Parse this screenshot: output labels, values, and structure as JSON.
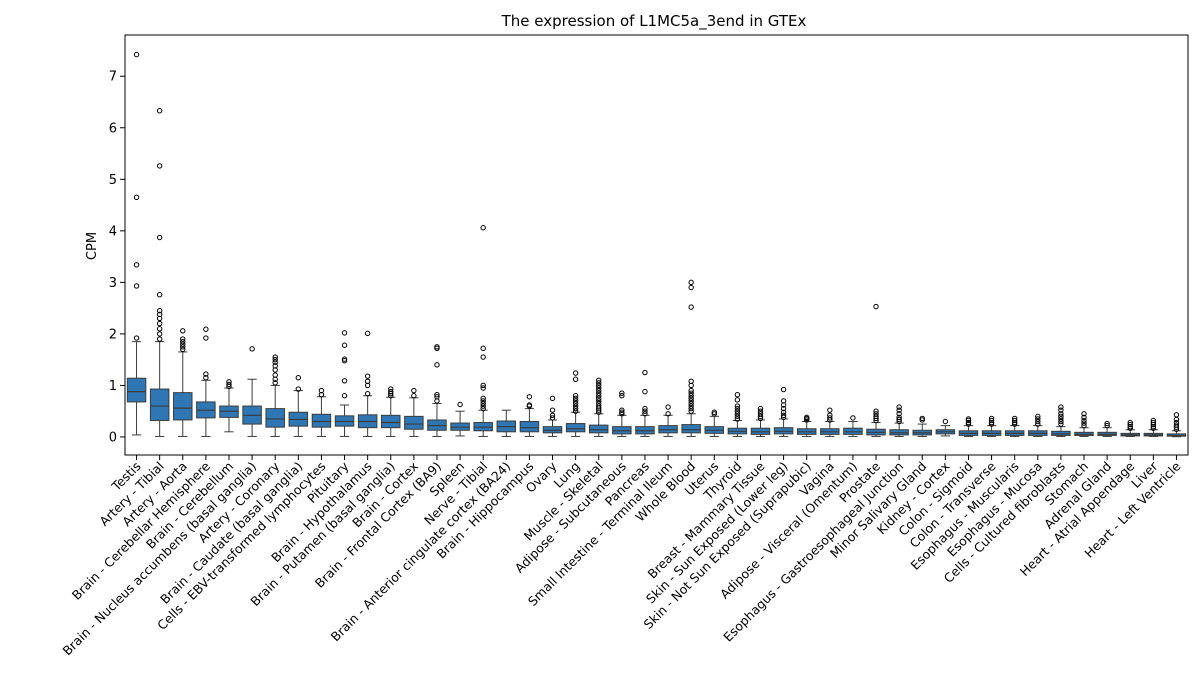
{
  "chart_data": {
    "type": "box",
    "title": "The expression of L1MC5a_3end in GTEx",
    "xlabel": "",
    "ylabel": "CPM",
    "ylim": [
      -0.35,
      7.8
    ],
    "yticks": [
      0,
      1,
      2,
      3,
      4,
      5,
      6,
      7
    ],
    "grid": false,
    "box_color": "#2f77b4",
    "edge_color": "#3b3b3b",
    "series": [
      {
        "name": "Testis",
        "whislo": 0.04,
        "q1": 0.68,
        "med": 0.88,
        "q3": 1.14,
        "whishi": 1.85,
        "fliers": [
          1.92,
          2.93,
          3.34,
          4.65,
          7.42
        ]
      },
      {
        "name": "Artery - Tibial",
        "whislo": 0.01,
        "q1": 0.32,
        "med": 0.6,
        "q3": 0.93,
        "whishi": 1.85,
        "fliers": [
          1.9,
          2.0,
          2.1,
          2.2,
          2.3,
          2.38,
          2.45,
          2.76,
          3.87,
          5.26,
          6.33
        ]
      },
      {
        "name": "Artery - Aorta",
        "whislo": 0.01,
        "q1": 0.33,
        "med": 0.56,
        "q3": 0.86,
        "whishi": 1.65,
        "fliers": [
          1.7,
          1.75,
          1.8,
          1.85,
          1.9,
          2.06
        ]
      },
      {
        "name": "Brain - Cerebellar Hemisphere",
        "whislo": 0.01,
        "q1": 0.37,
        "med": 0.52,
        "q3": 0.68,
        "whishi": 1.1,
        "fliers": [
          1.15,
          1.22,
          1.92,
          2.09
        ]
      },
      {
        "name": "Brain - Cerebellum",
        "whislo": 0.1,
        "q1": 0.38,
        "med": 0.5,
        "q3": 0.6,
        "whishi": 0.95,
        "fliers": [
          0.98,
          1.02,
          1.07
        ]
      },
      {
        "name": "Brain - Nucleus accumbens (basal ganglia)",
        "whislo": 0.01,
        "q1": 0.25,
        "med": 0.42,
        "q3": 0.6,
        "whishi": 1.12,
        "fliers": [
          1.71
        ]
      },
      {
        "name": "Artery - Coronary",
        "whislo": 0.01,
        "q1": 0.19,
        "med": 0.35,
        "q3": 0.55,
        "whishi": 1.0,
        "fliers": [
          1.05,
          1.12,
          1.2,
          1.3,
          1.38,
          1.45,
          1.5,
          1.55
        ]
      },
      {
        "name": "Brain - Caudate (basal ganglia)",
        "whislo": 0.01,
        "q1": 0.21,
        "med": 0.34,
        "q3": 0.48,
        "whishi": 0.9,
        "fliers": [
          0.93,
          1.15
        ]
      },
      {
        "name": "Cells - EBV-transformed lymphocytes",
        "whislo": 0.01,
        "q1": 0.19,
        "med": 0.3,
        "q3": 0.44,
        "whishi": 0.78,
        "fliers": [
          0.82,
          0.9
        ]
      },
      {
        "name": "Pituitary",
        "whislo": 0.01,
        "q1": 0.21,
        "med": 0.3,
        "q3": 0.41,
        "whishi": 0.62,
        "fliers": [
          0.8,
          1.09,
          1.48,
          1.51,
          1.78,
          2.02
        ]
      },
      {
        "name": "Brain - Hypothalamus",
        "whislo": 0.01,
        "q1": 0.18,
        "med": 0.3,
        "q3": 0.43,
        "whishi": 0.8,
        "fliers": [
          0.84,
          1.0,
          1.08,
          1.18,
          2.01
        ]
      },
      {
        "name": "Brain - Putamen (basal ganglia)",
        "whislo": 0.01,
        "q1": 0.18,
        "med": 0.28,
        "q3": 0.42,
        "whishi": 0.77,
        "fliers": [
          0.8,
          0.84,
          0.88,
          0.93
        ]
      },
      {
        "name": "Brain - Cortex",
        "whislo": 0.01,
        "q1": 0.15,
        "med": 0.25,
        "q3": 0.4,
        "whishi": 0.76,
        "fliers": [
          0.8,
          0.9
        ]
      },
      {
        "name": "Brain - Frontal Cortex (BA9)",
        "whislo": 0.01,
        "q1": 0.13,
        "med": 0.22,
        "q3": 0.33,
        "whishi": 0.65,
        "fliers": [
          0.7,
          0.78,
          0.82,
          1.4,
          1.72,
          1.75
        ]
      },
      {
        "name": "Spleen",
        "whislo": 0.02,
        "q1": 0.13,
        "med": 0.19,
        "q3": 0.27,
        "whishi": 0.5,
        "fliers": [
          0.63
        ]
      },
      {
        "name": "Nerve - Tibial",
        "whislo": 0.01,
        "q1": 0.12,
        "med": 0.19,
        "q3": 0.28,
        "whishi": 0.52,
        "fliers": [
          0.55,
          0.6,
          0.65,
          0.7,
          0.75,
          0.95,
          1.0,
          1.55,
          1.72,
          4.06
        ]
      },
      {
        "name": "Brain - Anterior cingulate cortex (BA24)",
        "whislo": 0.01,
        "q1": 0.1,
        "med": 0.2,
        "q3": 0.31,
        "whishi": 0.52,
        "fliers": []
      },
      {
        "name": "Brain - Hippocampus",
        "whislo": 0.01,
        "q1": 0.1,
        "med": 0.18,
        "q3": 0.3,
        "whishi": 0.55,
        "fliers": [
          0.6,
          0.62,
          0.78
        ]
      },
      {
        "name": "Ovary",
        "whislo": 0.01,
        "q1": 0.08,
        "med": 0.13,
        "q3": 0.2,
        "whishi": 0.33,
        "fliers": [
          0.37,
          0.42,
          0.52,
          0.75
        ]
      },
      {
        "name": "Lung",
        "whislo": 0.01,
        "q1": 0.1,
        "med": 0.16,
        "q3": 0.26,
        "whishi": 0.48,
        "fliers": [
          0.5,
          0.55,
          0.6,
          0.65,
          0.7,
          0.75,
          0.8,
          1.12,
          1.24
        ]
      },
      {
        "name": "Muscle - Skeletal",
        "whislo": 0.01,
        "q1": 0.08,
        "med": 0.14,
        "q3": 0.23,
        "whishi": 0.45,
        "fliers": [
          0.48,
          0.52,
          0.56,
          0.6,
          0.65,
          0.7,
          0.75,
          0.8,
          0.85,
          0.9,
          0.95,
          1.0,
          1.05,
          1.1
        ]
      },
      {
        "name": "Adipose - Subcutaneous",
        "whislo": 0.01,
        "q1": 0.06,
        "med": 0.12,
        "q3": 0.2,
        "whishi": 0.42,
        "fliers": [
          0.45,
          0.48,
          0.52,
          0.8,
          0.85
        ]
      },
      {
        "name": "Pancreas",
        "whislo": 0.01,
        "q1": 0.06,
        "med": 0.12,
        "q3": 0.2,
        "whishi": 0.42,
        "fliers": [
          0.45,
          0.5,
          0.55,
          0.88,
          1.25
        ]
      },
      {
        "name": "Small Intestine - Terminal Ileum",
        "whislo": 0.01,
        "q1": 0.08,
        "med": 0.14,
        "q3": 0.22,
        "whishi": 0.42,
        "fliers": [
          0.45,
          0.58
        ]
      },
      {
        "name": "Whole Blood",
        "whislo": 0.01,
        "q1": 0.08,
        "med": 0.14,
        "q3": 0.24,
        "whishi": 0.45,
        "fliers": [
          0.5,
          0.55,
          0.6,
          0.65,
          0.7,
          0.75,
          0.8,
          0.85,
          0.9,
          1.0,
          1.08,
          2.52,
          2.9,
          3.0
        ]
      },
      {
        "name": "Uterus",
        "whislo": 0.01,
        "q1": 0.07,
        "med": 0.13,
        "q3": 0.2,
        "whishi": 0.4,
        "fliers": [
          0.45,
          0.48
        ]
      },
      {
        "name": "Thyroid",
        "whislo": 0.01,
        "q1": 0.06,
        "med": 0.11,
        "q3": 0.17,
        "whishi": 0.32,
        "fliers": [
          0.35,
          0.4,
          0.45,
          0.5,
          0.55,
          0.6,
          0.72,
          0.82
        ]
      },
      {
        "name": "Breast - Mammary Tissue",
        "whislo": 0.01,
        "q1": 0.05,
        "med": 0.1,
        "q3": 0.17,
        "whishi": 0.33,
        "fliers": [
          0.36,
          0.4,
          0.45,
          0.5,
          0.55
        ]
      },
      {
        "name": "Skin - Sun Exposed (Lower leg)",
        "whislo": 0.01,
        "q1": 0.06,
        "med": 0.11,
        "q3": 0.18,
        "whishi": 0.35,
        "fliers": [
          0.38,
          0.42,
          0.48,
          0.55,
          0.62,
          0.7,
          0.92
        ]
      },
      {
        "name": "Skin - Not Sun Exposed (Suprapubic)",
        "whislo": 0.01,
        "q1": 0.05,
        "med": 0.1,
        "q3": 0.16,
        "whishi": 0.3,
        "fliers": [
          0.33,
          0.36,
          0.38
        ]
      },
      {
        "name": "Vagina",
        "whislo": 0.01,
        "q1": 0.05,
        "med": 0.1,
        "q3": 0.16,
        "whishi": 0.3,
        "fliers": [
          0.33,
          0.37,
          0.42,
          0.52
        ]
      },
      {
        "name": "Adipose - Visceral (Omentum)",
        "whislo": 0.01,
        "q1": 0.05,
        "med": 0.1,
        "q3": 0.17,
        "whishi": 0.3,
        "fliers": [
          0.37
        ]
      },
      {
        "name": "Prostate",
        "whislo": 0.01,
        "q1": 0.04,
        "med": 0.09,
        "q3": 0.15,
        "whishi": 0.28,
        "fliers": [
          0.32,
          0.36,
          0.4,
          0.45,
          0.5,
          2.53
        ]
      },
      {
        "name": "Esophagus - Gastroesophageal Junction",
        "whislo": 0.01,
        "q1": 0.04,
        "med": 0.08,
        "q3": 0.14,
        "whishi": 0.27,
        "fliers": [
          0.3,
          0.34,
          0.38,
          0.45,
          0.52,
          0.58
        ]
      },
      {
        "name": "Minor Salivary Gland",
        "whislo": 0.01,
        "q1": 0.04,
        "med": 0.08,
        "q3": 0.13,
        "whishi": 0.25,
        "fliers": [
          0.33,
          0.36
        ]
      },
      {
        "name": "Kidney - Cortex",
        "whislo": 0.02,
        "q1": 0.06,
        "med": 0.1,
        "q3": 0.14,
        "whishi": 0.22,
        "fliers": [
          0.3
        ]
      },
      {
        "name": "Colon - Sigmoid",
        "whislo": 0.01,
        "q1": 0.03,
        "med": 0.07,
        "q3": 0.12,
        "whishi": 0.22,
        "fliers": [
          0.25,
          0.28,
          0.32,
          0.35
        ]
      },
      {
        "name": "Colon - Transverse",
        "whislo": 0.01,
        "q1": 0.03,
        "med": 0.07,
        "q3": 0.12,
        "whishi": 0.22,
        "fliers": [
          0.25,
          0.28,
          0.32,
          0.36
        ]
      },
      {
        "name": "Esophagus - Muscularis",
        "whislo": 0.01,
        "q1": 0.03,
        "med": 0.07,
        "q3": 0.12,
        "whishi": 0.22,
        "fliers": [
          0.25,
          0.28,
          0.32,
          0.36
        ]
      },
      {
        "name": "Esophagus - Mucosa",
        "whislo": 0.01,
        "q1": 0.03,
        "med": 0.07,
        "q3": 0.12,
        "whishi": 0.22,
        "fliers": [
          0.25,
          0.3,
          0.35,
          0.4
        ]
      },
      {
        "name": "Cells - Cultured fibroblasts",
        "whislo": 0.01,
        "q1": 0.03,
        "med": 0.06,
        "q3": 0.11,
        "whishi": 0.2,
        "fliers": [
          0.25,
          0.3,
          0.35,
          0.4,
          0.45,
          0.52,
          0.58
        ]
      },
      {
        "name": "Stomach",
        "whislo": 0.01,
        "q1": 0.03,
        "med": 0.05,
        "q3": 0.09,
        "whishi": 0.18,
        "fliers": [
          0.22,
          0.27,
          0.32,
          0.38,
          0.45
        ]
      },
      {
        "name": "Adrenal Gland",
        "whislo": 0.01,
        "q1": 0.03,
        "med": 0.05,
        "q3": 0.09,
        "whishi": 0.18,
        "fliers": [
          0.22,
          0.26
        ]
      },
      {
        "name": "Heart - Atrial Appendage",
        "whislo": 0.01,
        "q1": 0.02,
        "med": 0.04,
        "q3": 0.07,
        "whishi": 0.14,
        "fliers": [
          0.17,
          0.2,
          0.24,
          0.28
        ]
      },
      {
        "name": "Liver",
        "whislo": 0.01,
        "q1": 0.02,
        "med": 0.04,
        "q3": 0.07,
        "whishi": 0.14,
        "fliers": [
          0.17,
          0.2,
          0.24,
          0.28,
          0.32
        ]
      },
      {
        "name": "Heart - Left Ventricle",
        "whislo": 0.005,
        "q1": 0.015,
        "med": 0.03,
        "q3": 0.06,
        "whishi": 0.12,
        "fliers": [
          0.15,
          0.19,
          0.23,
          0.28,
          0.34,
          0.43
        ]
      }
    ]
  }
}
